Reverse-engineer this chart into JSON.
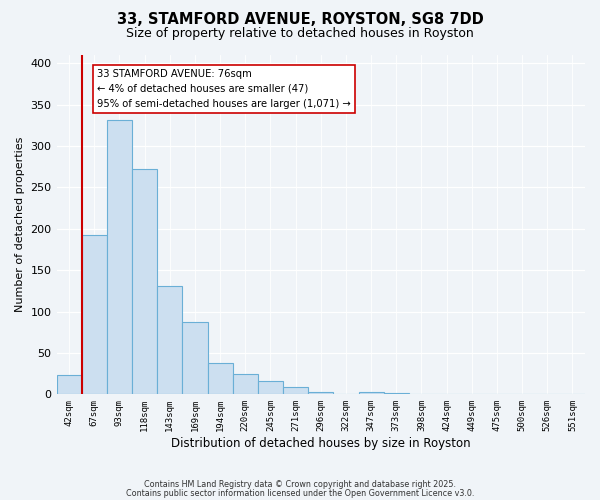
{
  "title": "33, STAMFORD AVENUE, ROYSTON, SG8 7DD",
  "subtitle": "Size of property relative to detached houses in Royston",
  "xlabel": "Distribution of detached houses by size in Royston",
  "ylabel": "Number of detached properties",
  "bar_labels": [
    "42sqm",
    "67sqm",
    "93sqm",
    "118sqm",
    "143sqm",
    "169sqm",
    "194sqm",
    "220sqm",
    "245sqm",
    "271sqm",
    "296sqm",
    "322sqm",
    "347sqm",
    "373sqm",
    "398sqm",
    "424sqm",
    "449sqm",
    "475sqm",
    "500sqm",
    "526sqm",
    "551sqm"
  ],
  "bar_values": [
    23,
    193,
    332,
    272,
    131,
    88,
    38,
    25,
    16,
    9,
    3,
    0,
    3,
    2,
    0,
    0,
    0,
    0,
    0,
    0,
    1
  ],
  "bar_fill_color": "#ccdff0",
  "bar_edge_color": "#6aafd6",
  "vline_color": "#cc0000",
  "vline_x_index": 1,
  "annotation_title": "33 STAMFORD AVENUE: 76sqm",
  "annotation_line1": "← 4% of detached houses are smaller (47)",
  "annotation_line2": "95% of semi-detached houses are larger (1,071) →",
  "annotation_box_color": "#ffffff",
  "annotation_box_edge": "#cc0000",
  "ylim": [
    0,
    410
  ],
  "yticks": [
    0,
    50,
    100,
    150,
    200,
    250,
    300,
    350,
    400
  ],
  "bg_color": "#f0f4f8",
  "grid_color": "#dde4ec",
  "footer1": "Contains HM Land Registry data © Crown copyright and database right 2025.",
  "footer2": "Contains public sector information licensed under the Open Government Licence v3.0."
}
